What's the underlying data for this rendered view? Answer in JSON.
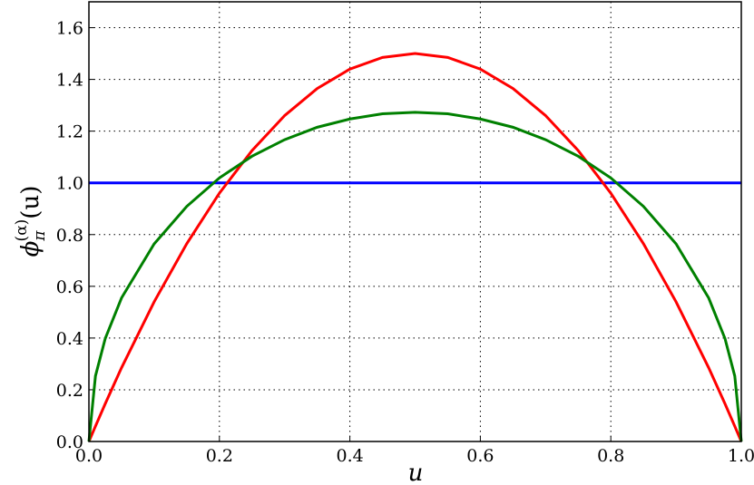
{
  "chart_data": {
    "type": "line",
    "x_label": "u",
    "y_label": {
      "base": "ϕ",
      "sub": "π",
      "sup": "(α)",
      "arg": "(u)"
    },
    "x": [
      0,
      0.01,
      0.025,
      0.05,
      0.1,
      0.15,
      0.2,
      0.25,
      0.3,
      0.35,
      0.4,
      0.45,
      0.5,
      0.55,
      0.6,
      0.65,
      0.7,
      0.75,
      0.8,
      0.85,
      0.9,
      0.95,
      0.975,
      0.99,
      1
    ],
    "series": [
      {
        "color": "#0000ff",
        "values": [
          1,
          1,
          1,
          1,
          1,
          1,
          1,
          1,
          1,
          1,
          1,
          1,
          1,
          1,
          1,
          1,
          1,
          1,
          1,
          1,
          1,
          1,
          1,
          1,
          1
        ]
      },
      {
        "color": "#ff0000",
        "values": [
          0,
          0.059,
          0.146,
          0.285,
          0.54,
          0.765,
          0.96,
          1.125,
          1.26,
          1.365,
          1.44,
          1.485,
          1.5,
          1.485,
          1.44,
          1.365,
          1.26,
          1.125,
          0.96,
          0.765,
          0.54,
          0.285,
          0.146,
          0.059,
          0
        ]
      },
      {
        "color": "#008000",
        "values": [
          0,
          0.253,
          0.398,
          0.555,
          0.764,
          0.909,
          1.019,
          1.103,
          1.167,
          1.215,
          1.247,
          1.267,
          1.273,
          1.267,
          1.247,
          1.215,
          1.167,
          1.103,
          1.019,
          0.909,
          0.764,
          0.555,
          0.398,
          0.253,
          0
        ]
      }
    ],
    "xlim": [
      0,
      1
    ],
    "ylim": [
      0,
      1.7
    ],
    "xticks": [
      {
        "value": 0,
        "label": "0.0"
      },
      0.2,
      0.4,
      0.6,
      0.8,
      {
        "value": 1,
        "label": "1.0"
      }
    ],
    "yticks": [
      {
        "value": 0,
        "label": "0.0"
      },
      0.2,
      0.4,
      0.6,
      0.8,
      {
        "value": 1,
        "label": "1.0"
      },
      1.2,
      1.4,
      1.6
    ],
    "grid": true
  }
}
